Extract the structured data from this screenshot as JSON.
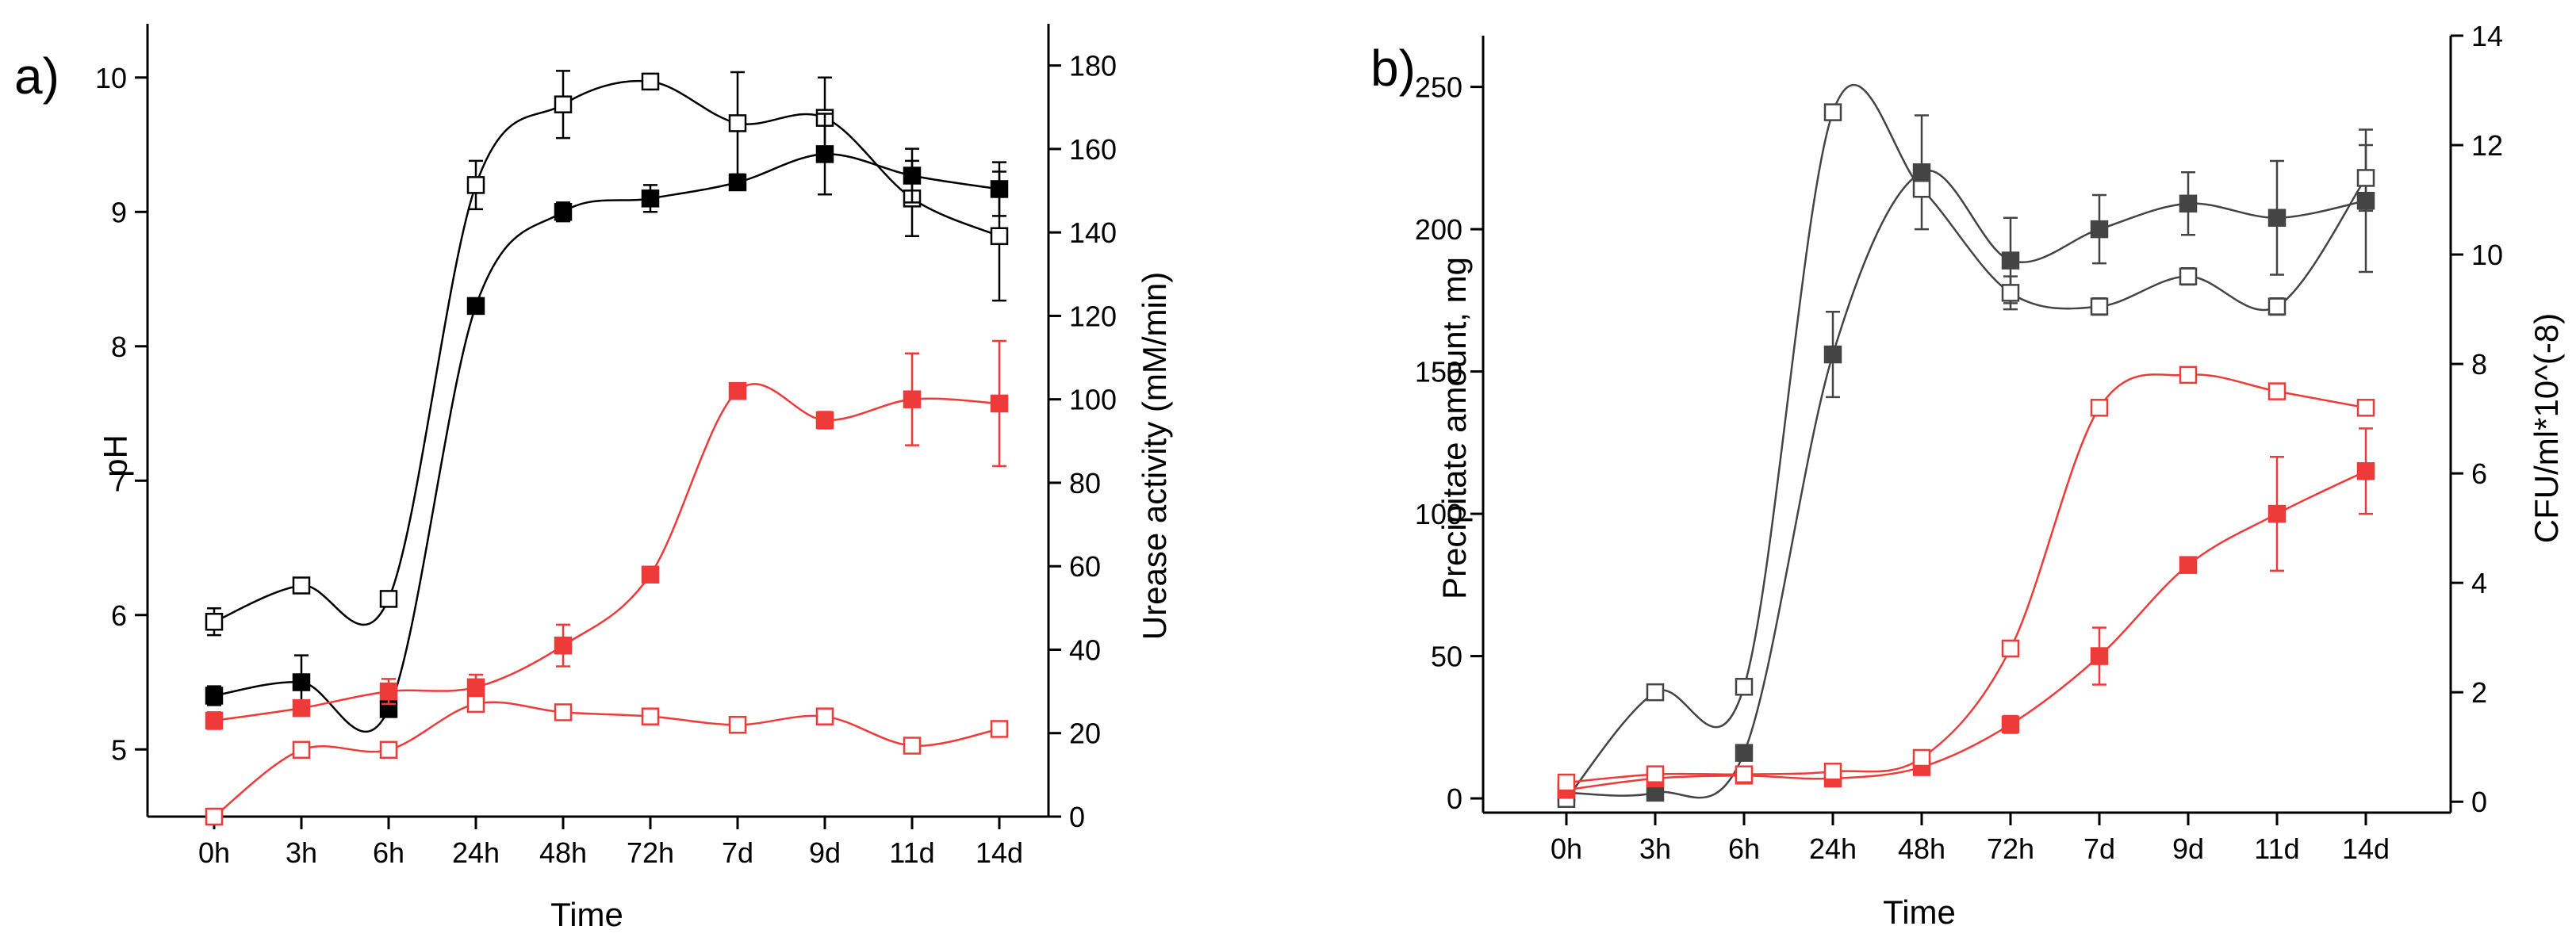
{
  "colors": {
    "black": "#000000",
    "dark": "#444444",
    "red": "#ef3a3a",
    "axis": "#000000"
  },
  "chart_data": [
    {
      "panel_label": "a)",
      "type": "line",
      "categories": [
        "0h",
        "3h",
        "6h",
        "24h",
        "48h",
        "72h",
        "7d",
        "9d",
        "11d",
        "14d"
      ],
      "xlabel": "Time",
      "ylabel_left": "pH",
      "ylabel_right": "Urease activity (mM/min)",
      "ylim_left": [
        4.5,
        10.4
      ],
      "ylim_right": [
        0,
        190
      ],
      "yticks_left": [
        "5",
        "6",
        "7",
        "8",
        "9",
        "10"
      ],
      "yticks_right": [
        "0",
        "20",
        "40",
        "60",
        "80",
        "100",
        "120",
        "140",
        "160",
        "180"
      ],
      "series": [
        {
          "axis": "left",
          "color": "black",
          "marker": "open",
          "values": [
            5.95,
            6.22,
            6.12,
            9.2,
            9.8,
            9.97,
            9.66,
            9.7,
            9.1,
            8.82
          ],
          "errors": [
            0.1,
            0.03,
            0.05,
            0.18,
            0.25,
            0.05,
            0.38,
            0.3,
            0.28,
            0.48
          ]
        },
        {
          "axis": "left",
          "color": "black",
          "marker": "filled",
          "values": [
            5.4,
            5.5,
            5.3,
            8.3,
            9.0,
            9.1,
            9.22,
            9.43,
            9.27,
            9.17
          ],
          "errors": [
            0.07,
            0.2,
            0.05,
            0.05,
            0.07,
            0.1,
            0.05,
            0.3,
            0.2,
            0.2
          ]
        },
        {
          "axis": "right",
          "color": "red",
          "marker": "filled",
          "values": [
            23,
            26,
            30,
            31,
            41,
            58,
            102,
            95,
            100,
            99
          ],
          "errors": [
            2,
            1,
            3,
            3,
            5,
            1,
            1,
            2,
            11,
            15
          ]
        },
        {
          "axis": "right",
          "color": "red",
          "marker": "open",
          "values": [
            0,
            16,
            16,
            27,
            25,
            24,
            22,
            24,
            17,
            21
          ],
          "errors": [
            1,
            1,
            1,
            1,
            1,
            1,
            1,
            1,
            1,
            1
          ]
        }
      ]
    },
    {
      "panel_label": "b)",
      "type": "line",
      "categories": [
        "0h",
        "3h",
        "6h",
        "24h",
        "48h",
        "72h",
        "7d",
        "9d",
        "11d",
        "14d"
      ],
      "xlabel": "Time",
      "ylabel_left": "Precipitate amount, mg",
      "ylabel_right": "CFU/ml*10^(-8)",
      "ylim_left": [
        -5,
        268
      ],
      "ylim_right": [
        -0.2,
        14
      ],
      "yticks_left": [
        "0",
        "50",
        "100",
        "150",
        "200",
        "250"
      ],
      "yticks_right": [
        "0",
        "2",
        "4",
        "6",
        "8",
        "10",
        "12",
        "14"
      ],
      "series": [
        {
          "axis": "left",
          "color": "dark",
          "marker": "filled",
          "values": [
            2,
            2,
            16,
            156,
            220,
            189,
            200,
            209,
            204,
            210
          ],
          "errors": [
            1,
            1,
            1,
            15,
            20,
            15,
            12,
            11,
            20,
            25
          ]
        },
        {
          "axis": "right",
          "color": "dark",
          "marker": "open",
          "values": [
            0.05,
            2,
            2.1,
            12.6,
            11.2,
            9.3,
            9.05,
            9.6,
            9.05,
            11.4
          ],
          "errors": [
            0.1,
            0.1,
            0.1,
            0.1,
            0.1,
            0.3,
            0.15,
            0.15,
            0.15,
            0.6
          ]
        },
        {
          "axis": "left",
          "color": "red",
          "marker": "filled",
          "values": [
            3,
            7,
            8,
            7,
            11,
            26,
            50,
            82,
            100,
            115
          ],
          "errors": [
            1,
            1,
            1,
            1,
            1,
            3,
            10,
            2,
            20,
            15
          ]
        },
        {
          "axis": "right",
          "color": "red",
          "marker": "open",
          "values": [
            0.35,
            0.5,
            0.5,
            0.55,
            0.8,
            2.8,
            7.2,
            7.8,
            7.5,
            7.2
          ],
          "errors": [
            0.1,
            0.1,
            0.1,
            0.1,
            0.1,
            0.1,
            0.1,
            0.1,
            0.1,
            0.1
          ]
        }
      ]
    }
  ]
}
